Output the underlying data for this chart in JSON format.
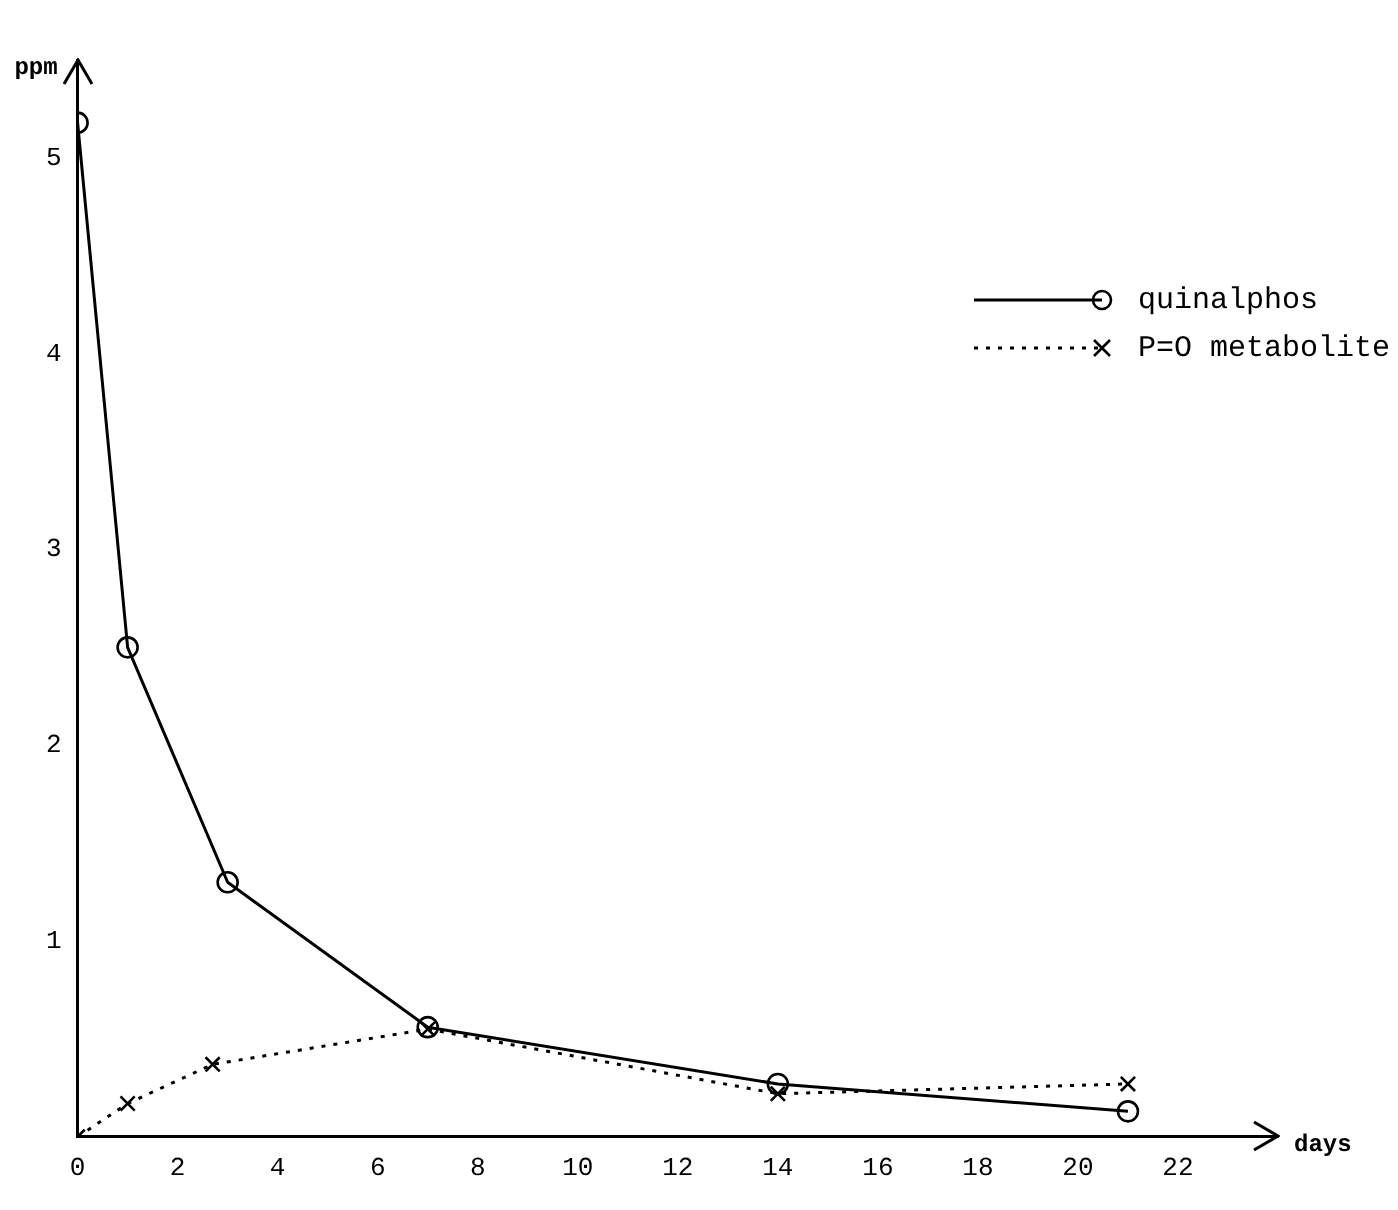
{
  "chart_data": {
    "type": "line",
    "xlabel": "days",
    "ylabel": "ppm",
    "xlim": [
      0,
      24
    ],
    "ylim": [
      0,
      5.5
    ],
    "xticks": [
      0,
      2,
      4,
      6,
      8,
      10,
      12,
      14,
      16,
      18,
      20,
      22
    ],
    "yticks": [
      1,
      2,
      3,
      4,
      5
    ],
    "grid": false,
    "legend": "top right",
    "series": [
      {
        "name": "quinalphos",
        "color": "#000000",
        "x": [
          0,
          1,
          3,
          7,
          14,
          21
        ],
        "values": [
          5.18,
          2.5,
          1.3,
          0.56,
          0.27,
          0.13
        ],
        "marker": "circle",
        "line_style": "solid"
      },
      {
        "name": "P=O metabolite",
        "color": "#000000",
        "x": [
          0,
          1,
          2.7,
          7,
          14,
          21
        ],
        "values": [
          0,
          0.17,
          0.37,
          0.55,
          0.22,
          0.27
        ],
        "marker": "cross",
        "line_style": "dotted"
      }
    ]
  }
}
